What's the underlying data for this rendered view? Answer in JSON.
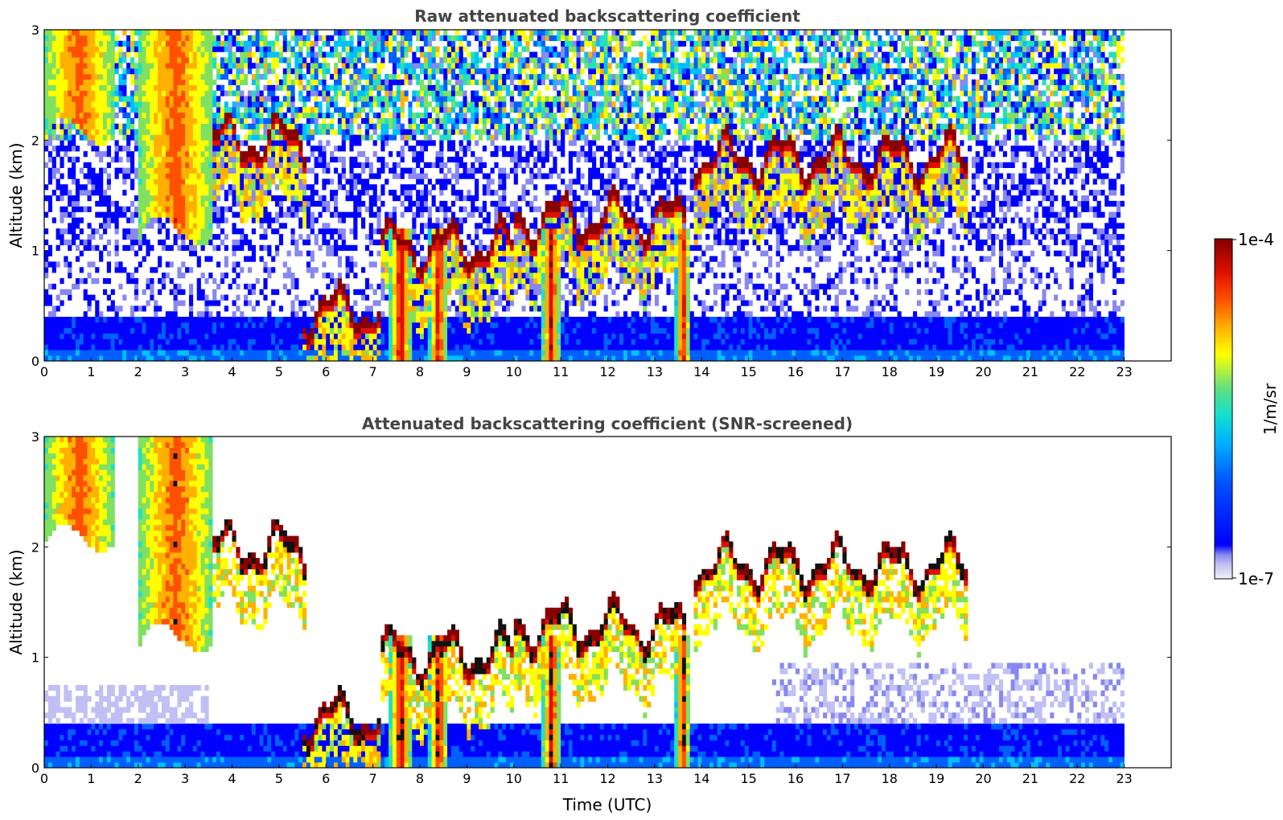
{
  "chart_data": [
    {
      "type": "heatmap",
      "title": "Raw attenuated backscattering coefficient",
      "xlabel": "",
      "ylabel": "Altitude (km)",
      "x_ticks": [
        "0",
        "1",
        "2",
        "3",
        "4",
        "5",
        "6",
        "7",
        "8",
        "9",
        "10",
        "11",
        "12",
        "13",
        "14",
        "15",
        "16",
        "17",
        "18",
        "19",
        "20",
        "21",
        "22",
        "23"
      ],
      "y_ticks": [
        "0",
        "1",
        "2",
        "3"
      ],
      "xlim": [
        0,
        24
      ],
      "ylim": [
        0,
        3
      ],
      "data_end_hour": 23,
      "grid": false,
      "screened": false,
      "color_scale": "log",
      "features": {
        "boundary_layer_top_km": 0.42,
        "high_cirrus": [
          {
            "t0": 0.0,
            "t1": 1.5,
            "base_km": 2.0,
            "top_km": 3.0
          },
          {
            "t0": 2.0,
            "t1": 3.6,
            "base_km": 1.1,
            "top_km": 3.0
          }
        ],
        "cloud_layers": [
          {
            "t0": 3.6,
            "t1": 5.6,
            "alt_km": 1.95
          },
          {
            "t0": 5.5,
            "t1": 7.2,
            "alt_km": 0.42
          },
          {
            "t0": 7.2,
            "t1": 10.0,
            "alt_km": 1.0
          },
          {
            "t0": 10.0,
            "t1": 13.7,
            "alt_km": 1.25
          },
          {
            "t0": 13.8,
            "t1": 19.7,
            "alt_km": 1.8
          }
        ],
        "precipitation_shafts": [
          {
            "t": 7.6,
            "width_h": 0.5
          },
          {
            "t": 8.4,
            "width_h": 0.4
          },
          {
            "t": 10.8,
            "width_h": 0.4
          },
          {
            "t": 13.6,
            "width_h": 0.3
          }
        ]
      }
    },
    {
      "type": "heatmap",
      "title": "Attenuated backscattering coefficient (SNR-screened)",
      "xlabel": "Time (UTC)",
      "ylabel": "Altitude (km)",
      "x_ticks": [
        "0",
        "1",
        "2",
        "3",
        "4",
        "5",
        "6",
        "7",
        "8",
        "9",
        "10",
        "11",
        "12",
        "13",
        "14",
        "15",
        "16",
        "17",
        "18",
        "19",
        "20",
        "21",
        "22",
        "23"
      ],
      "y_ticks": [
        "0",
        "1",
        "2",
        "3"
      ],
      "xlim": [
        0,
        24
      ],
      "ylim": [
        0,
        3
      ],
      "data_end_hour": 23,
      "grid": false,
      "screened": true,
      "color_scale": "log"
    }
  ],
  "colorbar": {
    "label": "1/m/sr",
    "max_label": "1e-4",
    "min_label": "1e-7",
    "colors": [
      "#ececfa",
      "#c0c0f4",
      "#8888f0",
      "#0000ff",
      "#0060ff",
      "#00c0ff",
      "#20e0c0",
      "#80e060",
      "#ffff00",
      "#ffb000",
      "#ff5000",
      "#e01000",
      "#880000"
    ]
  }
}
